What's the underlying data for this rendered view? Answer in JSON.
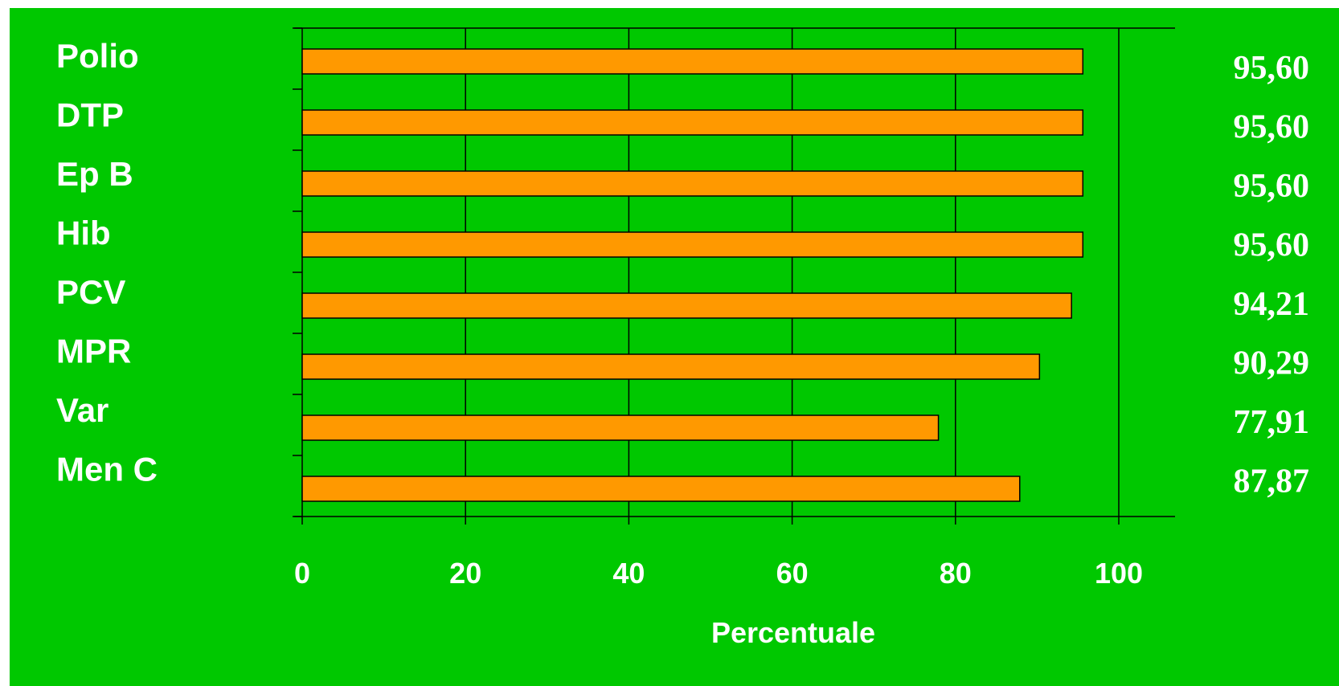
{
  "chart_data": {
    "type": "bar",
    "orientation": "horizontal",
    "categories": [
      "Polio",
      "DTP",
      "Ep B",
      "Hib",
      "PCV",
      "MPR",
      "Var",
      "Men C"
    ],
    "values": [
      95.6,
      95.6,
      95.6,
      95.6,
      94.21,
      90.29,
      77.91,
      87.87
    ],
    "value_labels": [
      "95,60",
      "95,60",
      "95,60",
      "95,60",
      "94,21",
      "90,29",
      "77,91",
      "87,87"
    ],
    "xlabel": "Percentuale",
    "ylabel": "",
    "xlim": [
      0,
      100
    ],
    "x_ticks": [
      0,
      20,
      40,
      60,
      80,
      100
    ],
    "x_tick_labels": [
      "0",
      "20",
      "40",
      "60",
      "80",
      "100"
    ],
    "grid": "vertical",
    "legend": "none"
  },
  "colors": {
    "background": "#00c800",
    "bar_fill": "#ff9900",
    "bar_stroke": "#000000",
    "gridline": "#000000",
    "text": "#ffffff"
  }
}
